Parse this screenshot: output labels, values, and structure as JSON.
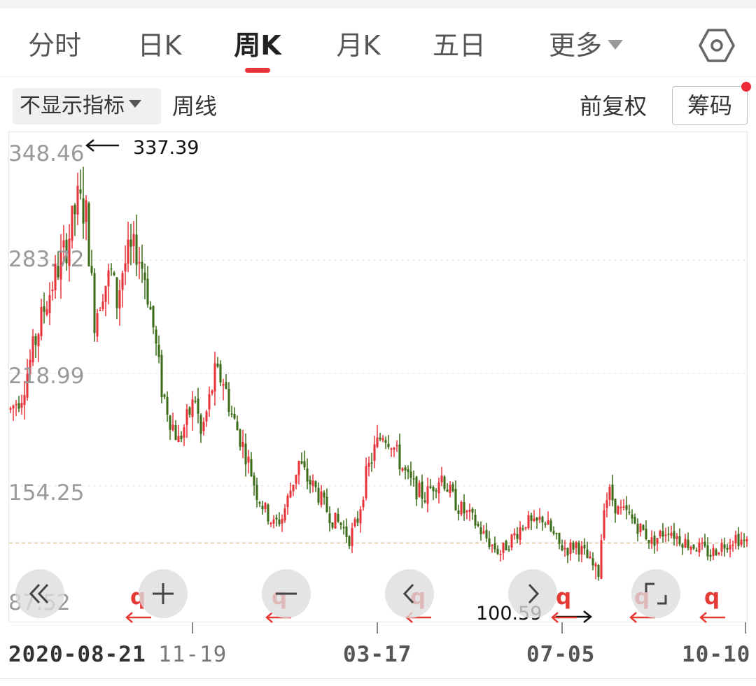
{
  "tabs": [
    {
      "label": "分时",
      "active": false
    },
    {
      "label": "日K",
      "active": false
    },
    {
      "label": "周K",
      "active": true
    },
    {
      "label": "月K",
      "active": false
    },
    {
      "label": "五日",
      "active": false
    },
    {
      "label": "更多",
      "active": false
    }
  ],
  "settings_icon": "settings-hexagon-icon",
  "toolbar": {
    "indicator": "不显示指标",
    "period": "周线",
    "adjust": "前复权",
    "chips": "筹码"
  },
  "colors": {
    "up": "#e8323a",
    "down": "#3a6b16",
    "accent": "#e8323a",
    "marker": "#e53935"
  },
  "y_labels": [
    "348.46",
    "283.72",
    "218.99",
    "154.25",
    "87.52"
  ],
  "annotations": {
    "high": "337.39",
    "low": "100.59"
  },
  "x_labels": [
    "2020-08-21",
    "11-19",
    "03-17",
    "07-05",
    "10-10"
  ],
  "markers": {
    "q": "q"
  },
  "controls": [
    "rewind-icon",
    "zoom-in-icon",
    "zoom-out-icon",
    "prev-icon",
    "next-icon",
    "fullscreen-icon"
  ],
  "chart_data": {
    "type": "candlestick",
    "title": "周K",
    "y_axis": {
      "min": 87.52,
      "max": 348.46,
      "gridlines": [
        348.46,
        283.72,
        218.99,
        154.25,
        87.52
      ]
    },
    "x_ticks": [
      "2020-08-21",
      "11-19",
      "03-17",
      "07-05",
      "10-10"
    ],
    "period_high": 337.39,
    "period_low": 100.59,
    "reference_line": 121.5,
    "trend_anchors_close": [
      [
        0,
        198
      ],
      [
        4,
        207
      ],
      [
        8,
        232
      ],
      [
        12,
        256
      ],
      [
        16,
        275
      ],
      [
        20,
        292
      ],
      [
        24,
        318
      ],
      [
        27,
        310
      ],
      [
        30,
        250
      ],
      [
        33,
        268
      ],
      [
        36,
        276
      ],
      [
        38,
        260
      ],
      [
        40,
        278
      ],
      [
        42,
        286
      ],
      [
        45,
        290
      ],
      [
        48,
        275
      ],
      [
        51,
        245
      ],
      [
        54,
        210
      ],
      [
        57,
        193
      ],
      [
        60,
        180
      ],
      [
        63,
        192
      ],
      [
        66,
        205
      ],
      [
        68,
        183
      ],
      [
        70,
        196
      ],
      [
        73,
        218
      ],
      [
        76,
        215
      ],
      [
        79,
        195
      ],
      [
        82,
        182
      ],
      [
        85,
        168
      ],
      [
        88,
        150
      ],
      [
        91,
        140
      ],
      [
        94,
        132
      ],
      [
        97,
        136
      ],
      [
        100,
        152
      ],
      [
        103,
        168
      ],
      [
        106,
        158
      ],
      [
        109,
        152
      ],
      [
        112,
        143
      ],
      [
        115,
        135
      ],
      [
        118,
        132
      ],
      [
        121,
        124
      ],
      [
        124,
        135
      ],
      [
        127,
        160
      ],
      [
        130,
        175
      ],
      [
        133,
        185
      ],
      [
        136,
        180
      ],
      [
        139,
        168
      ],
      [
        142,
        158
      ],
      [
        145,
        152
      ],
      [
        148,
        148
      ],
      [
        151,
        155
      ],
      [
        154,
        160
      ],
      [
        157,
        150
      ],
      [
        160,
        142
      ],
      [
        163,
        138
      ],
      [
        166,
        133
      ],
      [
        169,
        126
      ],
      [
        172,
        120
      ],
      [
        175,
        116
      ],
      [
        178,
        122
      ],
      [
        181,
        128
      ],
      [
        184,
        134
      ],
      [
        187,
        131
      ],
      [
        190,
        136
      ],
      [
        193,
        128
      ],
      [
        196,
        120
      ],
      [
        199,
        118
      ],
      [
        202,
        121
      ],
      [
        205,
        115
      ],
      [
        208,
        108
      ],
      [
        210,
        104
      ],
      [
        212,
        145
      ],
      [
        214,
        150
      ],
      [
        217,
        140
      ],
      [
        220,
        138
      ],
      [
        223,
        133
      ],
      [
        226,
        128
      ],
      [
        229,
        122
      ],
      [
        232,
        126
      ],
      [
        235,
        130
      ],
      [
        238,
        125
      ],
      [
        241,
        122
      ],
      [
        244,
        120
      ],
      [
        247,
        118
      ],
      [
        250,
        115
      ],
      [
        253,
        119
      ],
      [
        256,
        122
      ],
      [
        259,
        125
      ],
      [
        262,
        122
      ],
      [
        264,
        120
      ]
    ],
    "candle_count": 264
  }
}
